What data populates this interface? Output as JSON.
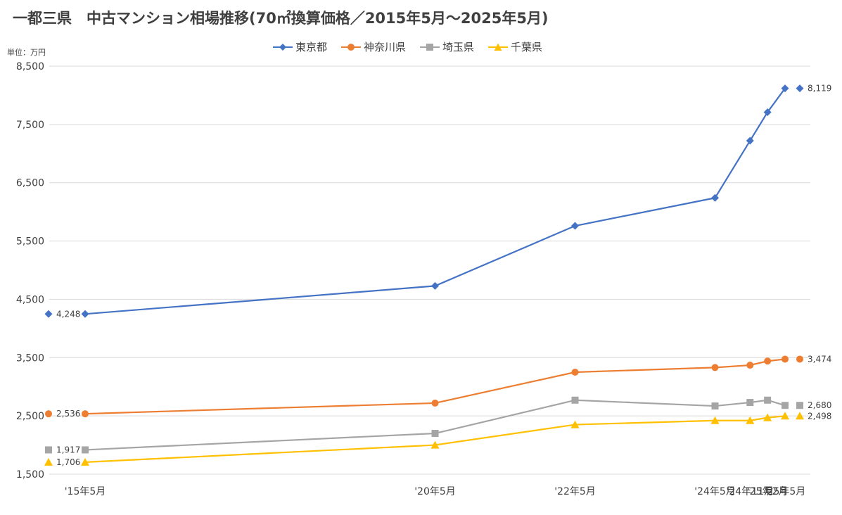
{
  "title": "一都三県　中古マンション相場推移(70㎡換算価格／2015年5月～2025年5月)",
  "unit_label": "単位：万円",
  "colors": {
    "tokyo": "#4472C4",
    "kanagawa": "#ED7D31",
    "saitama": "#A5A5A5",
    "chiba": "#FFC000",
    "grid": "#D9D9D9",
    "text": "#404040"
  },
  "chart_data": {
    "type": "line",
    "title": "一都三県　中古マンション相場推移(70㎡換算価格／2015年5月～2025年5月)",
    "ylabel": "単位：万円",
    "ylim": [
      1500,
      8500
    ],
    "yticks": [
      "1,500",
      "2,500",
      "3,500",
      "4,500",
      "5,500",
      "6,500",
      "7,500",
      "8,500"
    ],
    "ytick_values": [
      1500,
      2500,
      3500,
      4500,
      5500,
      6500,
      7500,
      8500
    ],
    "grid": true,
    "legend_position": "top",
    "x_dates": [
      "2015-05",
      "2020-05",
      "2022-05",
      "2024-05",
      "2024-11",
      "2025-02",
      "2025-05"
    ],
    "x_tick_labels": [
      "'15年5月",
      "'20年5月",
      "'22年5月",
      "'24年5月",
      "'24年11月",
      "'25年2月",
      "'25年5月"
    ],
    "series": [
      {
        "key": "tokyo",
        "name": "東京都",
        "marker": "diamond",
        "values": [
          4248,
          4730,
          5760,
          6240,
          7220,
          7710,
          8119
        ],
        "start_label": "4,248",
        "end_label": "8,119"
      },
      {
        "key": "kanagawa",
        "name": "神奈川県",
        "marker": "circle",
        "values": [
          2536,
          2720,
          3250,
          3330,
          3370,
          3440,
          3474
        ],
        "start_label": "2,536",
        "end_label": "3,474"
      },
      {
        "key": "saitama",
        "name": "埼玉県",
        "marker": "square",
        "values": [
          1917,
          2200,
          2770,
          2670,
          2730,
          2770,
          2680
        ],
        "start_label": "1,917",
        "end_label": "2,680"
      },
      {
        "key": "chiba",
        "name": "千葉県",
        "marker": "triangle",
        "values": [
          1706,
          2000,
          2350,
          2420,
          2420,
          2470,
          2498
        ],
        "start_label": "1,706",
        "end_label": "2,498"
      }
    ]
  }
}
